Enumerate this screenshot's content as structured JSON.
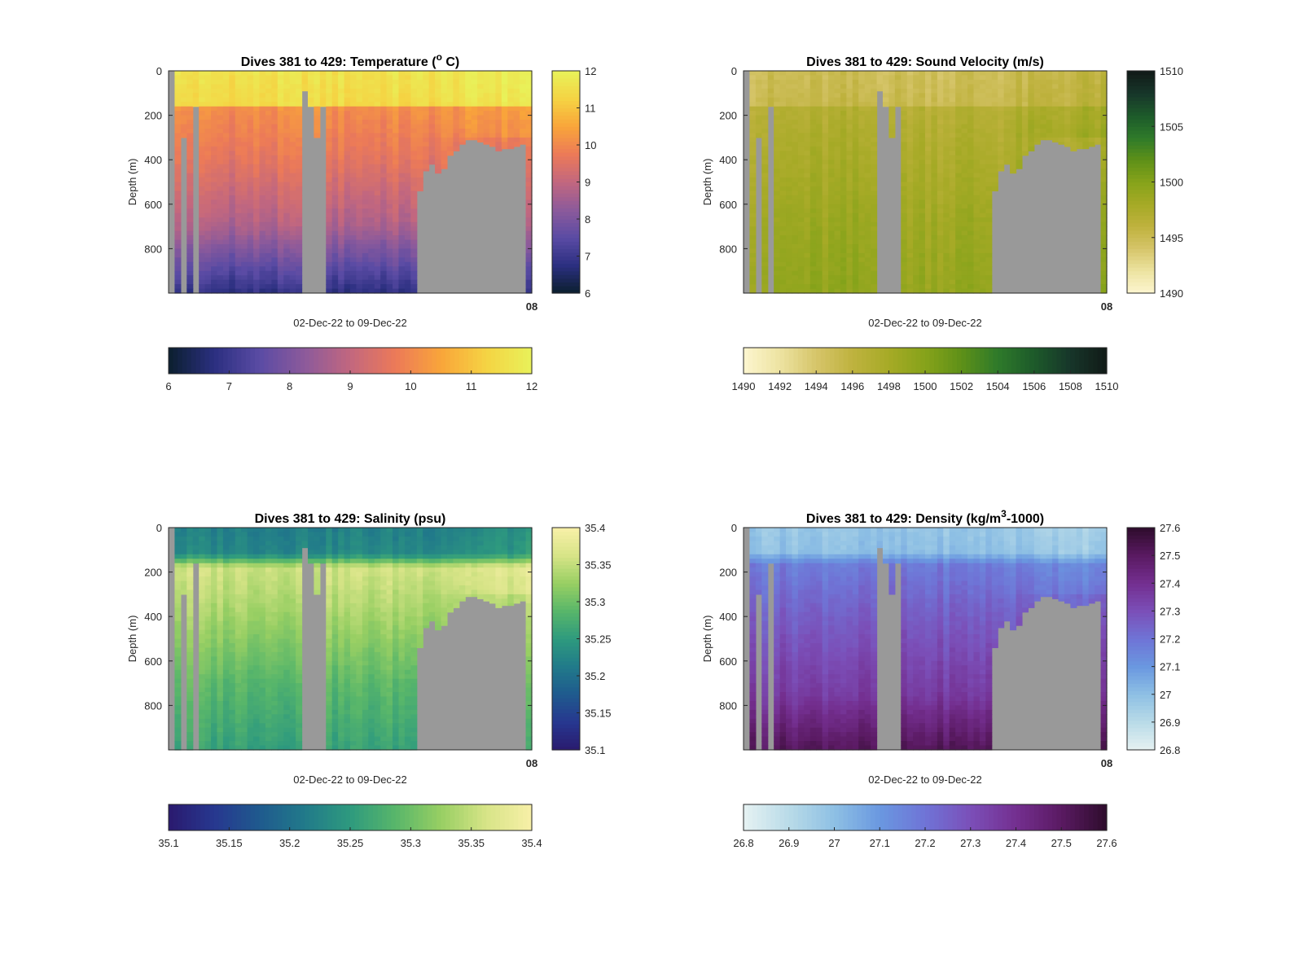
{
  "date_range_label": "02-Dec-22 to 09-Dec-22",
  "y_axis_label": "Depth (m)",
  "x_end_tick_label": "08",
  "mask_color": "#999999",
  "chart_data": [
    {
      "type": "heatmap",
      "title_main": "Dives 381 to 429: Temperature (",
      "title_sup": "o",
      "title_tail": " C)",
      "xlabel": "02-Dec-22 to 09-Dec-22",
      "ylabel": "Depth (m)",
      "ylim": [
        0,
        1000
      ],
      "yticks": [
        0,
        200,
        400,
        600,
        800
      ],
      "y_reversed": true,
      "clim": [
        6,
        12
      ],
      "colorbar_ticks": [
        "6",
        "7",
        "8",
        "9",
        "10",
        "11",
        "12"
      ],
      "hcolorbar_ticks": [
        "6",
        "7",
        "8",
        "9",
        "10",
        "11",
        "12"
      ],
      "colormap": [
        "#0b1f2e",
        "#2b2f80",
        "#5a4ba4",
        "#8c5a9b",
        "#c2677f",
        "#ec7a58",
        "#f9a53a",
        "#f5d343",
        "#e8f25a"
      ],
      "value_profile": {
        "depths": [
          0,
          150,
          170,
          400,
          700,
          1000
        ],
        "values": [
          11.6,
          11.4,
          10.1,
          9.6,
          8.7,
          6.8
        ]
      },
      "bathymetry": {
        "columns": 60,
        "max_depth": [
          1000,
          1000,
          300,
          1000,
          160,
          1000,
          1000,
          1000,
          1000,
          1000,
          1000,
          1000,
          1000,
          1000,
          1000,
          1000,
          1000,
          1000,
          1000,
          1000,
          1000,
          1000,
          90,
          160,
          300,
          160,
          1000,
          1000,
          1000,
          1000,
          1000,
          1000,
          1000,
          1000,
          1000,
          1000,
          1000,
          1000,
          1000,
          1000,
          1000,
          540,
          450,
          420,
          460,
          440,
          380,
          360,
          330,
          310,
          310,
          320,
          330,
          340,
          360,
          350,
          350,
          340,
          330,
          1000
        ]
      },
      "side_mask": {
        "left_columns": 1,
        "right_columns": 0
      }
    },
    {
      "type": "heatmap",
      "title_main": "Dives 381 to 429: Sound Velocity (m/s)",
      "title_sup": "",
      "title_tail": "",
      "xlabel": "02-Dec-22 to 09-Dec-22",
      "ylabel": "Depth (m)",
      "ylim": [
        0,
        1000
      ],
      "yticks": [
        0,
        200,
        400,
        600,
        800
      ],
      "y_reversed": true,
      "clim": [
        1490,
        1510
      ],
      "colorbar_ticks": [
        "1490",
        "1495",
        "1500",
        "1505",
        "1510"
      ],
      "hcolorbar_ticks": [
        "1490",
        "1492",
        "1494",
        "1496",
        "1498",
        "1500",
        "1502",
        "1504",
        "1506",
        "1508",
        "1510"
      ],
      "colormap": [
        "#fdf6d0",
        "#ede3a1",
        "#d6c56a",
        "#bfb23e",
        "#a6aa26",
        "#86a31a",
        "#5e9018",
        "#2e7a2a",
        "#1d5a2a",
        "#17362a",
        "#111a17"
      ],
      "value_profile": {
        "depths": [
          0,
          150,
          170,
          400,
          700,
          1000
        ],
        "values": [
          1494.8,
          1495.2,
          1496.8,
          1497.6,
          1498.6,
          1499.2
        ]
      },
      "bathymetry": {
        "columns": 60,
        "max_depth": [
          1000,
          1000,
          300,
          1000,
          160,
          1000,
          1000,
          1000,
          1000,
          1000,
          1000,
          1000,
          1000,
          1000,
          1000,
          1000,
          1000,
          1000,
          1000,
          1000,
          1000,
          1000,
          90,
          160,
          300,
          160,
          1000,
          1000,
          1000,
          1000,
          1000,
          1000,
          1000,
          1000,
          1000,
          1000,
          1000,
          1000,
          1000,
          1000,
          1000,
          540,
          450,
          420,
          460,
          440,
          380,
          360,
          330,
          310,
          310,
          320,
          330,
          340,
          360,
          350,
          350,
          340,
          330,
          1000
        ]
      },
      "side_mask": {
        "left_columns": 1,
        "right_columns": 0
      }
    },
    {
      "type": "heatmap",
      "title_main": "Dives 381 to 429: Salinity (psu)",
      "title_sup": "",
      "title_tail": "",
      "xlabel": "02-Dec-22 to 09-Dec-22",
      "ylabel": "Depth (m)",
      "ylim": [
        0,
        1000
      ],
      "yticks": [
        0,
        200,
        400,
        600,
        800
      ],
      "y_reversed": true,
      "clim": [
        35.1,
        35.4
      ],
      "colorbar_ticks": [
        "35.1",
        "35.15",
        "35.2",
        "35.25",
        "35.3",
        "35.35",
        "35.4"
      ],
      "hcolorbar_ticks": [
        "35.1",
        "35.15",
        "35.2",
        "35.25",
        "35.3",
        "35.35",
        "35.4"
      ],
      "colormap": [
        "#2a1a6e",
        "#27378f",
        "#1f5a8e",
        "#217a8a",
        "#2e9a7e",
        "#58b66a",
        "#98cf63",
        "#d7e487",
        "#f8f0a8"
      ],
      "value_profile": {
        "depths": [
          0,
          120,
          180,
          350,
          700,
          1000
        ],
        "values": [
          35.22,
          35.23,
          35.36,
          35.34,
          35.29,
          35.26
        ]
      },
      "bathymetry": {
        "columns": 60,
        "max_depth": [
          1000,
          1000,
          300,
          1000,
          160,
          1000,
          1000,
          1000,
          1000,
          1000,
          1000,
          1000,
          1000,
          1000,
          1000,
          1000,
          1000,
          1000,
          1000,
          1000,
          1000,
          1000,
          90,
          160,
          300,
          160,
          1000,
          1000,
          1000,
          1000,
          1000,
          1000,
          1000,
          1000,
          1000,
          1000,
          1000,
          1000,
          1000,
          1000,
          1000,
          540,
          450,
          420,
          460,
          440,
          380,
          360,
          330,
          310,
          310,
          320,
          330,
          340,
          360,
          350,
          350,
          340,
          330,
          1000
        ]
      },
      "side_mask": {
        "left_columns": 1,
        "right_columns": 0
      }
    },
    {
      "type": "heatmap",
      "title_main": "Dives 381 to 429: Density (kg/m",
      "title_sup": "3",
      "title_tail": "-1000)",
      "xlabel": "02-Dec-22 to 09-Dec-22",
      "ylabel": "Depth (m)",
      "ylim": [
        0,
        1000
      ],
      "yticks": [
        0,
        200,
        400,
        600,
        800
      ],
      "y_reversed": true,
      "clim": [
        26.8,
        27.6
      ],
      "colorbar_ticks": [
        "26.8",
        "26.9",
        "27",
        "27.1",
        "27.2",
        "27.3",
        "27.4",
        "27.5",
        "27.6"
      ],
      "hcolorbar_ticks": [
        "26.8",
        "26.9",
        "27",
        "27.1",
        "27.2",
        "27.3",
        "27.4",
        "27.5",
        "27.6"
      ],
      "colormap": [
        "#e6f2f2",
        "#b9dbe8",
        "#8ec0e4",
        "#6a98e0",
        "#6f74d6",
        "#7b4fb8",
        "#742f90",
        "#5a1a62",
        "#2e0c2c"
      ],
      "value_profile": {
        "depths": [
          0,
          110,
          170,
          400,
          750,
          1000
        ],
        "values": [
          26.98,
          27.0,
          27.18,
          27.26,
          27.36,
          27.52
        ]
      },
      "bathymetry": {
        "columns": 60,
        "max_depth": [
          1000,
          1000,
          300,
          1000,
          160,
          1000,
          1000,
          1000,
          1000,
          1000,
          1000,
          1000,
          1000,
          1000,
          1000,
          1000,
          1000,
          1000,
          1000,
          1000,
          1000,
          1000,
          90,
          160,
          300,
          160,
          1000,
          1000,
          1000,
          1000,
          1000,
          1000,
          1000,
          1000,
          1000,
          1000,
          1000,
          1000,
          1000,
          1000,
          1000,
          540,
          450,
          420,
          460,
          440,
          380,
          360,
          330,
          310,
          310,
          320,
          330,
          340,
          360,
          350,
          350,
          340,
          330,
          1000
        ]
      },
      "side_mask": {
        "left_columns": 1,
        "right_columns": 0
      }
    }
  ]
}
